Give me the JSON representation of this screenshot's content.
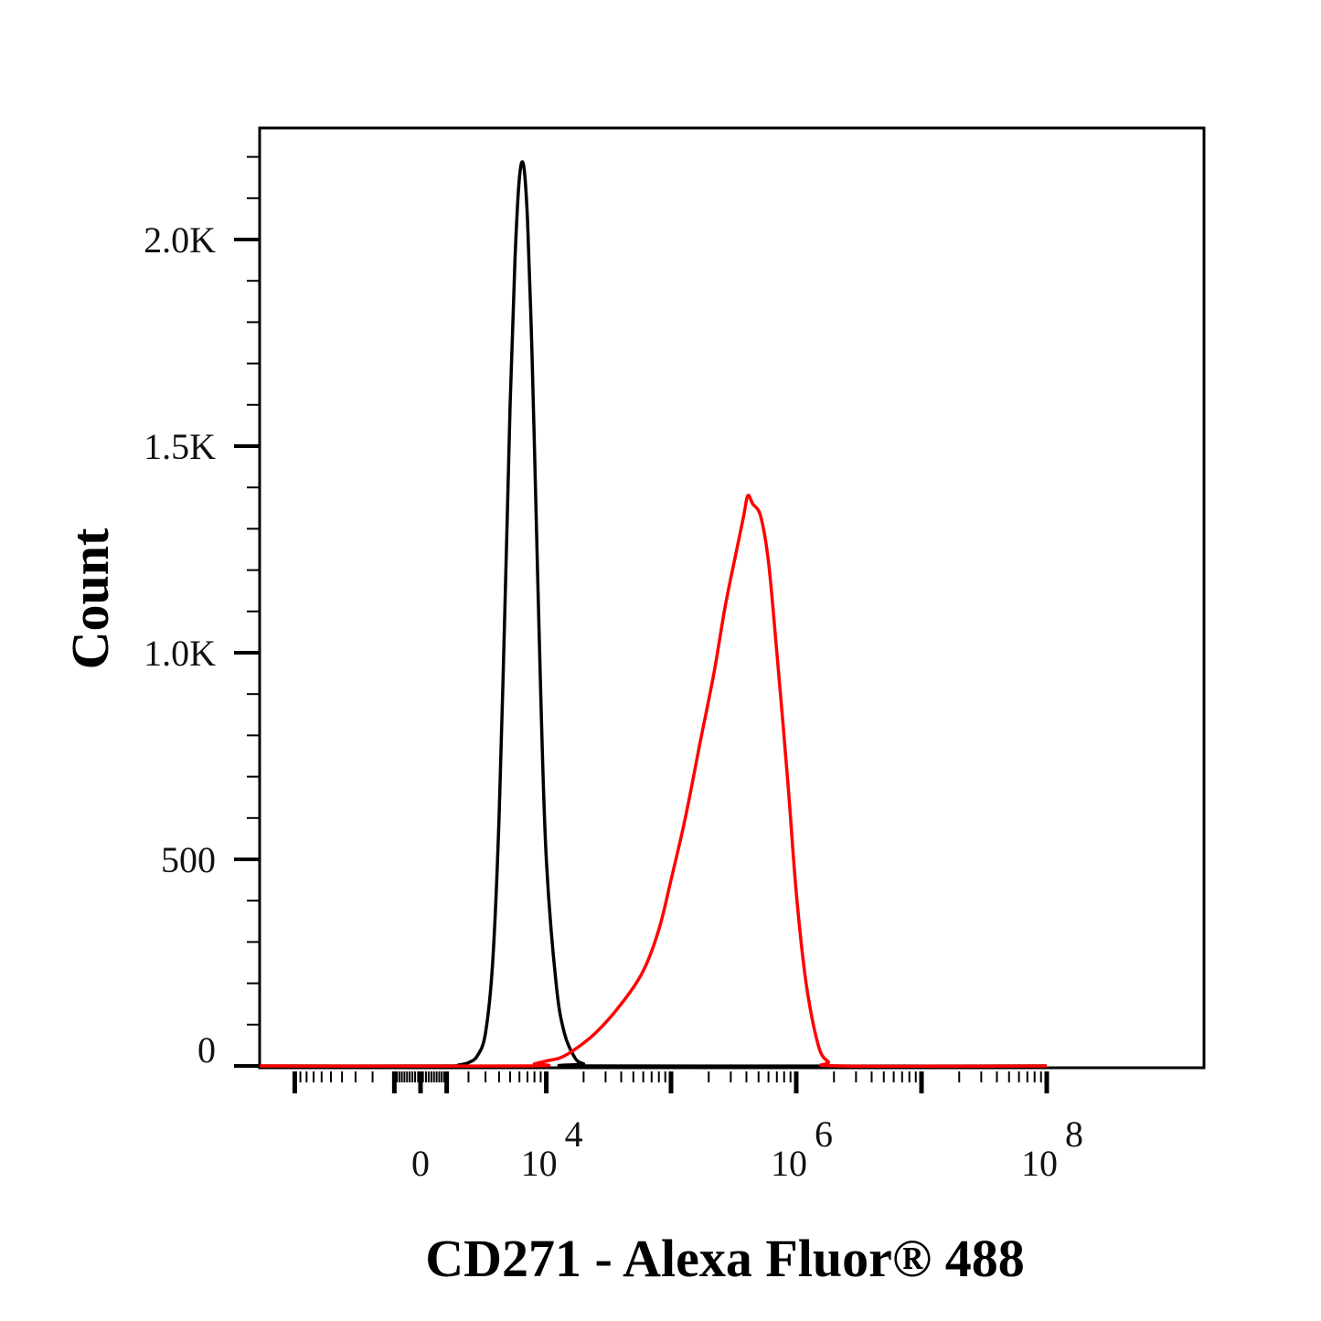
{
  "chart_data": {
    "type": "line",
    "xlabel": "CD271 - Alexa Fluor® 488",
    "ylabel": "Count",
    "x_scale": "biexponential",
    "y_scale": "linear",
    "ylim": [
      0,
      2250
    ],
    "y_ticks": [
      {
        "value": 0,
        "label": "0"
      },
      {
        "value": 500,
        "label": "500"
      },
      {
        "value": 1000,
        "label": "1.0K"
      },
      {
        "value": 1500,
        "label": "1.5K"
      },
      {
        "value": 2000,
        "label": "2.0K"
      }
    ],
    "x_ticks": [
      {
        "value": 0,
        "label_base": "0",
        "label_exp": ""
      },
      {
        "value": 10000,
        "label_base": "10",
        "label_exp": "4"
      },
      {
        "value": 1000000,
        "label_base": "10",
        "label_exp": "6"
      },
      {
        "value": 100000000,
        "label_base": "10",
        "label_exp": "8"
      }
    ],
    "series": [
      {
        "color": "#000000",
        "points": [
          [
            1000,
            0
          ],
          [
            1500,
            2
          ],
          [
            2000,
            8
          ],
          [
            2500,
            25
          ],
          [
            3000,
            80
          ],
          [
            3500,
            250
          ],
          [
            4000,
            600
          ],
          [
            4500,
            1100
          ],
          [
            5000,
            1600
          ],
          [
            5500,
            1950
          ],
          [
            6000,
            2150
          ],
          [
            6500,
            2180
          ],
          [
            7000,
            2050
          ],
          [
            7500,
            1800
          ],
          [
            8000,
            1500
          ],
          [
            9000,
            900
          ],
          [
            10000,
            500
          ],
          [
            12000,
            200
          ],
          [
            14000,
            80
          ],
          [
            17000,
            20
          ],
          [
            20000,
            5
          ],
          [
            25000,
            0
          ],
          [
            100000000,
            0
          ]
        ]
      },
      {
        "color": "#ff0000",
        "points": [
          [
            7000,
            0
          ],
          [
            8000,
            5
          ],
          [
            10000,
            12
          ],
          [
            13000,
            20
          ],
          [
            17000,
            40
          ],
          [
            25000,
            80
          ],
          [
            40000,
            150
          ],
          [
            60000,
            230
          ],
          [
            80000,
            330
          ],
          [
            100000,
            450
          ],
          [
            130000,
            600
          ],
          [
            170000,
            780
          ],
          [
            220000,
            950
          ],
          [
            270000,
            1110
          ],
          [
            330000,
            1240
          ],
          [
            380000,
            1330
          ],
          [
            410000,
            1380
          ],
          [
            450000,
            1360
          ],
          [
            520000,
            1330
          ],
          [
            600000,
            1220
          ],
          [
            700000,
            1000
          ],
          [
            850000,
            700
          ],
          [
            1000000,
            420
          ],
          [
            1200000,
            200
          ],
          [
            1500000,
            50
          ],
          [
            1800000,
            10
          ],
          [
            2200000,
            0
          ],
          [
            100000000,
            0
          ]
        ]
      }
    ]
  }
}
